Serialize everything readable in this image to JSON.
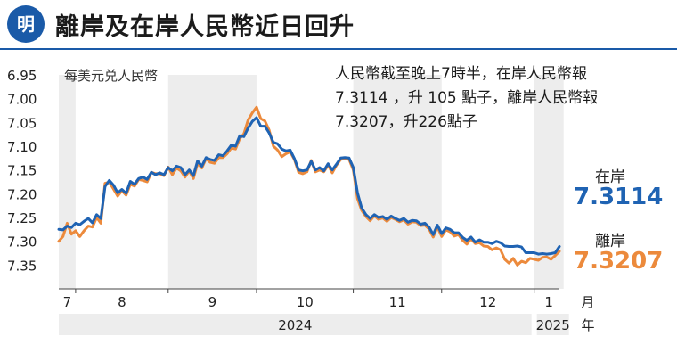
{
  "header": {
    "logo_text": "明",
    "title": "離岸及在岸人民幣近日回升"
  },
  "note": {
    "line1": "人民幣截至晚上7時半，在岸人民幣報",
    "line2": "7.3114 ，升 105 點子，離岸人民幣報",
    "line3": "7.3207，升226點子"
  },
  "legend": {
    "onshore_label": "在岸",
    "onshore_value": "7.3114",
    "onshore_color": "#1f63b3",
    "offshore_label": "離岸",
    "offshore_value": "7.3207",
    "offshore_color": "#ec8a3c"
  },
  "chart_data": {
    "type": "line",
    "ylabel": "每美元兑人民幣",
    "yticks": [
      "6.95",
      "7.00",
      "7.05",
      "7.10",
      "7.15",
      "7.20",
      "7.25",
      "7.30",
      "7.35"
    ],
    "ylim": [
      6.95,
      7.4
    ],
    "y_inverted": true,
    "grid": false,
    "x_unit_month": "月",
    "x_unit_year": "年",
    "months": [
      {
        "label": "7",
        "start": 0,
        "end": 4
      },
      {
        "label": "8",
        "start": 4,
        "end": 26
      },
      {
        "label": "9",
        "start": 26,
        "end": 47
      },
      {
        "label": "10",
        "start": 47,
        "end": 70
      },
      {
        "label": "11",
        "start": 70,
        "end": 91
      },
      {
        "label": "12",
        "start": 91,
        "end": 113
      },
      {
        "label": "1",
        "start": 113,
        "end": 120
      }
    ],
    "years": [
      {
        "label": "2024",
        "start": 0,
        "end": 113
      },
      {
        "label": "2025",
        "start": 113,
        "end": 120
      }
    ],
    "series": [
      {
        "name": "在岸",
        "color": "#1f63b3",
        "values": [
          7.275,
          7.276,
          7.268,
          7.271,
          7.262,
          7.265,
          7.258,
          7.252,
          7.261,
          7.244,
          7.252,
          7.185,
          7.172,
          7.182,
          7.198,
          7.191,
          7.199,
          7.174,
          7.18,
          7.168,
          7.165,
          7.17,
          7.155,
          7.16,
          7.156,
          7.16,
          7.145,
          7.152,
          7.142,
          7.145,
          7.16,
          7.15,
          7.162,
          7.131,
          7.142,
          7.124,
          7.128,
          7.13,
          7.118,
          7.12,
          7.11,
          7.098,
          7.1,
          7.078,
          7.08,
          7.062,
          7.048,
          7.04,
          7.058,
          7.058,
          7.072,
          7.092,
          7.095,
          7.106,
          7.11,
          7.108,
          7.126,
          7.15,
          7.152,
          7.15,
          7.132,
          7.15,
          7.145,
          7.152,
          7.137,
          7.15,
          7.138,
          7.125,
          7.124,
          7.125,
          7.145,
          7.198,
          7.23,
          7.244,
          7.252,
          7.244,
          7.25,
          7.248,
          7.254,
          7.247,
          7.252,
          7.256,
          7.252,
          7.26,
          7.256,
          7.257,
          7.264,
          7.262,
          7.27,
          7.286,
          7.266,
          7.284,
          7.272,
          7.275,
          7.282,
          7.282,
          7.292,
          7.298,
          7.291,
          7.302,
          7.297,
          7.302,
          7.302,
          7.305,
          7.3,
          7.303,
          7.31,
          7.311,
          7.311,
          7.31,
          7.312,
          7.324,
          7.324,
          7.324,
          7.327,
          7.326,
          7.327,
          7.326,
          7.324,
          7.311
        ]
      },
      {
        "name": "離岸",
        "color": "#ec8a3c",
        "values": [
          7.3,
          7.29,
          7.262,
          7.285,
          7.278,
          7.29,
          7.278,
          7.268,
          7.27,
          7.25,
          7.262,
          7.178,
          7.176,
          7.19,
          7.205,
          7.194,
          7.203,
          7.18,
          7.184,
          7.17,
          7.172,
          7.175,
          7.155,
          7.158,
          7.158,
          7.162,
          7.144,
          7.16,
          7.146,
          7.152,
          7.165,
          7.152,
          7.168,
          7.136,
          7.146,
          7.126,
          7.134,
          7.136,
          7.124,
          7.124,
          7.116,
          7.104,
          7.106,
          7.084,
          7.074,
          7.045,
          7.03,
          7.018,
          7.042,
          7.047,
          7.066,
          7.1,
          7.108,
          7.122,
          7.116,
          7.112,
          7.128,
          7.155,
          7.158,
          7.154,
          7.13,
          7.154,
          7.15,
          7.154,
          7.14,
          7.156,
          7.14,
          7.128,
          7.126,
          7.128,
          7.15,
          7.21,
          7.235,
          7.248,
          7.257,
          7.246,
          7.254,
          7.251,
          7.258,
          7.25,
          7.254,
          7.259,
          7.255,
          7.264,
          7.259,
          7.26,
          7.267,
          7.266,
          7.274,
          7.291,
          7.27,
          7.29,
          7.276,
          7.28,
          7.289,
          7.286,
          7.298,
          7.306,
          7.295,
          7.305,
          7.303,
          7.31,
          7.311,
          7.318,
          7.314,
          7.318,
          7.338,
          7.346,
          7.336,
          7.35,
          7.342,
          7.345,
          7.336,
          7.338,
          7.34,
          7.334,
          7.333,
          7.338,
          7.33,
          7.321
        ]
      }
    ]
  }
}
